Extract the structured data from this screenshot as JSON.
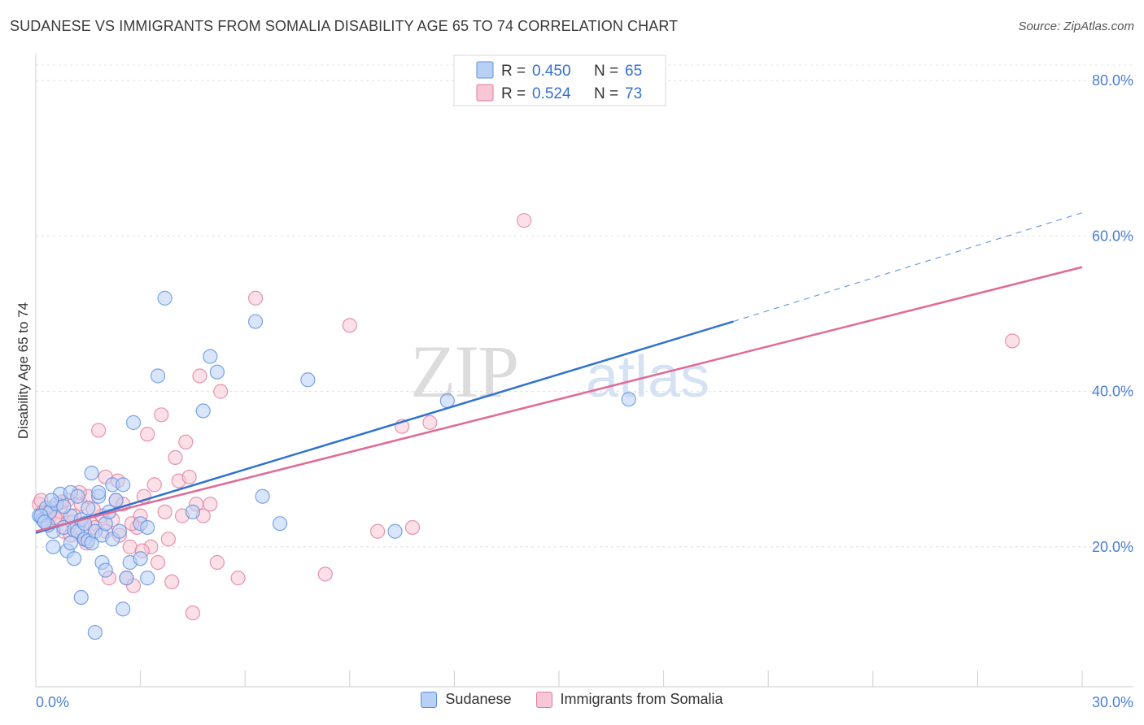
{
  "title": "SUDANESE VS IMMIGRANTS FROM SOMALIA DISABILITY AGE 65 TO 74 CORRELATION CHART",
  "source": "Source: ZipAtlas.com",
  "watermark": {
    "zip": "ZIP",
    "atlas": "atlas"
  },
  "chart_data": {
    "type": "scatter",
    "title": "SUDANESE VS IMMIGRANTS FROM SOMALIA DISABILITY AGE 65 TO 74 CORRELATION CHART",
    "xlabel": "",
    "ylabel": "Disability Age 65 to 74",
    "xlim": [
      0,
      30
    ],
    "ylim": [
      2,
      82
    ],
    "x_tick_labels": {
      "min": "0.0%",
      "max": "30.0%"
    },
    "y_ticks": [
      20,
      40,
      60,
      80
    ],
    "y_tick_labels": [
      "20.0%",
      "40.0%",
      "60.0%",
      "80.0%"
    ],
    "grid": true,
    "legend_top": [
      {
        "r_label": "R = ",
        "r_value": "0.450",
        "n_label": "N = ",
        "n_value": "65",
        "color": "#5b8fe0",
        "fill": "#b9d0f5"
      },
      {
        "r_label": "R = ",
        "r_value": "0.524",
        "n_label": "N = ",
        "n_value": "73",
        "color": "#e07b9c",
        "fill": "#f7c7d6"
      }
    ],
    "series": [
      {
        "name": "Sudanese",
        "color": "#5b8fe0",
        "fill": "#b9d0f5",
        "trend": {
          "x0": 0,
          "y0": 21.8,
          "x1": 20,
          "y1": 49.0,
          "dash_x1": 30,
          "dash_y1": 63.0
        },
        "points": [
          [
            0.1,
            24.0
          ],
          [
            0.2,
            23.5
          ],
          [
            0.3,
            25.0
          ],
          [
            0.4,
            24.5
          ],
          [
            0.5,
            22.0
          ],
          [
            0.5,
            20.0
          ],
          [
            0.6,
            25.5
          ],
          [
            0.7,
            26.8
          ],
          [
            0.8,
            22.5
          ],
          [
            0.9,
            19.5
          ],
          [
            1.0,
            20.5
          ],
          [
            1.0,
            24.0
          ],
          [
            1.0,
            27.0
          ],
          [
            1.1,
            22.2
          ],
          [
            1.1,
            18.5
          ],
          [
            1.2,
            26.5
          ],
          [
            1.2,
            22.0
          ],
          [
            1.3,
            23.5
          ],
          [
            1.3,
            13.5
          ],
          [
            1.4,
            21.0
          ],
          [
            1.5,
            25.0
          ],
          [
            1.5,
            20.8
          ],
          [
            1.6,
            20.5
          ],
          [
            1.6,
            29.5
          ],
          [
            1.7,
            9.0
          ],
          [
            1.7,
            22.0
          ],
          [
            1.8,
            26.5
          ],
          [
            1.8,
            27.0
          ],
          [
            1.9,
            21.5
          ],
          [
            1.9,
            18.0
          ],
          [
            2.0,
            23.0
          ],
          [
            2.0,
            17.0
          ],
          [
            2.1,
            24.5
          ],
          [
            2.2,
            28.0
          ],
          [
            2.2,
            21.0
          ],
          [
            2.3,
            26.0
          ],
          [
            2.5,
            12.0
          ],
          [
            2.5,
            28.0
          ],
          [
            2.6,
            16.0
          ],
          [
            2.7,
            18.0
          ],
          [
            2.8,
            36.0
          ],
          [
            3.0,
            18.5
          ],
          [
            3.0,
            23.0
          ],
          [
            3.2,
            16.0
          ],
          [
            3.2,
            22.5
          ],
          [
            3.5,
            42.0
          ],
          [
            3.7,
            52.0
          ],
          [
            4.5,
            24.5
          ],
          [
            4.8,
            37.5
          ],
          [
            5.0,
            44.5
          ],
          [
            5.2,
            42.5
          ],
          [
            6.3,
            49.0
          ],
          [
            6.5,
            26.5
          ],
          [
            7.0,
            23.0
          ],
          [
            7.8,
            41.5
          ],
          [
            10.3,
            22.0
          ],
          [
            11.8,
            38.8
          ],
          [
            17.0,
            39.0
          ],
          [
            0.15,
            24.0
          ],
          [
            0.35,
            22.8
          ],
          [
            0.8,
            25.2
          ],
          [
            1.4,
            23.0
          ],
          [
            2.4,
            22.0
          ],
          [
            0.45,
            26.0
          ],
          [
            0.25,
            23.2
          ]
        ]
      },
      {
        "name": "Immigrants from Somalia",
        "color": "#e07b9c",
        "fill": "#f7c7d6",
        "trend": {
          "x0": 0,
          "y0": 22.0,
          "x1": 30,
          "y1": 56.0
        },
        "points": [
          [
            0.1,
            25.5
          ],
          [
            0.2,
            24.5
          ],
          [
            0.3,
            23.0
          ],
          [
            0.4,
            24.0
          ],
          [
            0.5,
            25.0
          ],
          [
            0.6,
            23.5
          ],
          [
            0.7,
            24.5
          ],
          [
            0.8,
            22.0
          ],
          [
            0.9,
            26.0
          ],
          [
            1.0,
            21.5
          ],
          [
            1.1,
            24.0
          ],
          [
            1.2,
            22.5
          ],
          [
            1.3,
            25.5
          ],
          [
            1.4,
            21.0
          ],
          [
            1.5,
            26.5
          ],
          [
            1.6,
            23.0
          ],
          [
            1.7,
            22.5
          ],
          [
            1.8,
            35.0
          ],
          [
            1.9,
            24.0
          ],
          [
            2.0,
            29.0
          ],
          [
            2.0,
            22.0
          ],
          [
            2.1,
            16.0
          ],
          [
            2.2,
            23.5
          ],
          [
            2.3,
            26.0
          ],
          [
            2.4,
            21.5
          ],
          [
            2.5,
            25.5
          ],
          [
            2.6,
            16.0
          ],
          [
            2.7,
            20.0
          ],
          [
            2.8,
            15.0
          ],
          [
            2.9,
            22.5
          ],
          [
            3.0,
            24.0
          ],
          [
            3.1,
            26.5
          ],
          [
            3.2,
            34.5
          ],
          [
            3.3,
            20.0
          ],
          [
            3.4,
            28.0
          ],
          [
            3.5,
            18.0
          ],
          [
            3.6,
            37.0
          ],
          [
            3.7,
            24.5
          ],
          [
            3.8,
            21.0
          ],
          [
            3.9,
            15.5
          ],
          [
            4.0,
            31.5
          ],
          [
            4.1,
            28.5
          ],
          [
            4.2,
            24.0
          ],
          [
            4.3,
            33.5
          ],
          [
            4.4,
            29.0
          ],
          [
            4.5,
            11.5
          ],
          [
            4.6,
            25.5
          ],
          [
            4.7,
            42.0
          ],
          [
            4.8,
            24.0
          ],
          [
            5.0,
            25.5
          ],
          [
            5.2,
            18.0
          ],
          [
            5.3,
            40.0
          ],
          [
            5.8,
            16.0
          ],
          [
            6.3,
            52.0
          ],
          [
            8.3,
            16.5
          ],
          [
            9.0,
            48.5
          ],
          [
            9.8,
            22.0
          ],
          [
            10.8,
            22.5
          ],
          [
            10.5,
            35.5
          ],
          [
            11.3,
            36.0
          ],
          [
            14.0,
            62.0
          ],
          [
            28.0,
            46.5
          ],
          [
            0.15,
            26.0
          ],
          [
            0.35,
            24.2
          ],
          [
            0.55,
            23.8
          ],
          [
            0.75,
            25.8
          ],
          [
            1.05,
            23.2
          ],
          [
            1.25,
            27.0
          ],
          [
            1.45,
            20.5
          ],
          [
            1.65,
            24.8
          ],
          [
            2.35,
            28.5
          ],
          [
            2.75,
            23.0
          ],
          [
            3.05,
            19.5
          ]
        ]
      }
    ]
  }
}
